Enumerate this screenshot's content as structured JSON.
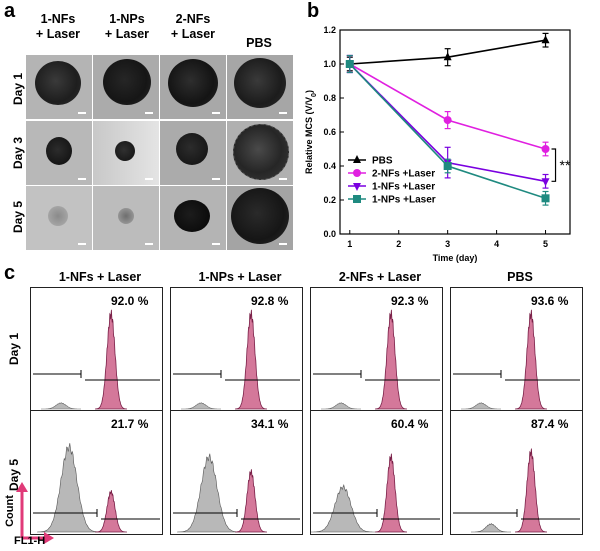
{
  "panels": {
    "a": "a",
    "b": "b",
    "c": "c"
  },
  "panel_a": {
    "columns": [
      "1-NFs\n+ Laser",
      "1-NPs\n+ Laser",
      "2-NFs\n+ Laser",
      "PBS"
    ],
    "col_line1": [
      "1-NFs",
      "1-NPs",
      "2-NFs",
      "PBS"
    ],
    "col_line2": [
      "+ Laser",
      "+ Laser",
      "+ Laser",
      ""
    ],
    "rows": [
      "Day 1",
      "Day 3",
      "Day 5"
    ]
  },
  "chart_data": {
    "type": "line",
    "title": "",
    "xlabel": "Time (day)",
    "ylabel": "Relative MCS (V/V₀)",
    "ylabel_main": "Relative MCS (V/V",
    "ylabel_sub": "0",
    "ylabel_end": ")",
    "xlim": [
      0.8,
      5.5
    ],
    "ylim": [
      0.0,
      1.2
    ],
    "xticks": [
      1,
      2,
      3,
      4,
      5
    ],
    "yticks": [
      0.0,
      0.2,
      0.4,
      0.6,
      0.8,
      1.0,
      1.2
    ],
    "ytick_labels": [
      "0.0",
      "0.2",
      "0.4",
      "0.6",
      "0.8",
      "1.0",
      "1.2"
    ],
    "series": [
      {
        "name": "PBS",
        "color": "#000000",
        "marker": "triangle-up",
        "x": [
          1,
          3,
          5
        ],
        "y": [
          1.0,
          1.04,
          1.14
        ],
        "err": [
          0.04,
          0.05,
          0.04
        ]
      },
      {
        "name": "2-NFs +Laser",
        "color": "#e020e0",
        "marker": "circle",
        "x": [
          1,
          3,
          5
        ],
        "y": [
          1.0,
          0.67,
          0.5
        ],
        "err": [
          0.05,
          0.05,
          0.04
        ]
      },
      {
        "name": "1-NFs +Laser",
        "color": "#7a00e0",
        "marker": "triangle-down",
        "x": [
          1,
          3,
          5
        ],
        "y": [
          1.0,
          0.42,
          0.31
        ],
        "err": [
          0.05,
          0.09,
          0.04
        ]
      },
      {
        "name": "1-NPs +Laser",
        "color": "#1f8a80",
        "marker": "square",
        "x": [
          1,
          3,
          5
        ],
        "y": [
          1.0,
          0.4,
          0.21
        ],
        "err": [
          0.05,
          0.04,
          0.04
        ]
      }
    ],
    "significance": "**"
  },
  "panel_c": {
    "columns": [
      "1-NFs + Laser",
      "1-NPs + Laser",
      "2-NFs + Laser",
      "PBS"
    ],
    "rows": [
      "Day 1",
      "Day 5"
    ],
    "percentages": {
      "day1": [
        "92.0 %",
        "92.8 %",
        "92.3 %",
        "93.6 %"
      ],
      "day5": [
        "21.7 %",
        "34.1 %",
        "60.4 %",
        "87.4 %"
      ]
    },
    "axis_y": "Count",
    "axis_x": "FL1-H",
    "colors": {
      "positive": "#d4789a",
      "negative": "#b8b8b8"
    }
  }
}
